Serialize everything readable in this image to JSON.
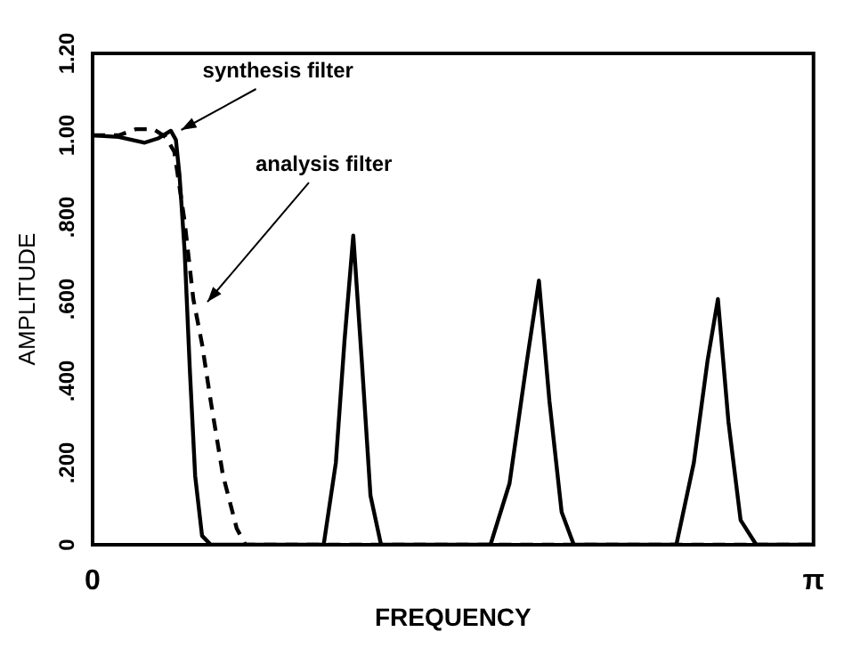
{
  "chart_data": {
    "type": "line",
    "xlabel": "FREQUENCY",
    "ylabel": "AMPLITUDE",
    "xlim": [
      0,
      3.1416
    ],
    "xticks": [
      {
        "value": 0,
        "label": "0"
      },
      {
        "value": 3.1416,
        "label": "π"
      }
    ],
    "ylim": [
      0,
      1.2
    ],
    "yticks": [
      {
        "value": 0,
        "label": "0"
      },
      {
        "value": 0.2,
        "label": ".200"
      },
      {
        "value": 0.4,
        "label": ".400"
      },
      {
        "value": 0.6,
        "label": ".600"
      },
      {
        "value": 0.8,
        "label": ".800"
      },
      {
        "value": 1.0,
        "label": "1.00"
      },
      {
        "value": 1.2,
        "label": "1.20"
      }
    ],
    "grid": false,
    "legend": false,
    "marker": "none",
    "series": [
      {
        "color": "#000000",
        "line_style": "solid",
        "x": [
          0,
          0.114,
          0.227,
          0.288,
          0.341,
          0.363,
          0.379,
          0.401,
          0.424,
          0.447,
          0.477,
          0.515,
          0.757,
          1.007,
          1.06,
          1.098,
          1.136,
          1.173,
          1.211,
          1.257,
          1.734,
          1.817,
          1.893,
          1.945,
          1.991,
          2.044,
          2.097,
          2.544,
          2.62,
          2.68,
          2.725,
          2.771,
          2.824,
          2.892,
          3.1416
        ],
        "values": [
          1.0,
          0.996,
          0.982,
          0.993,
          1.011,
          0.989,
          0.901,
          0.718,
          0.425,
          0.168,
          0.022,
          0,
          0,
          0,
          0.2,
          0.5,
          0.755,
          0.45,
          0.12,
          0,
          0,
          0.15,
          0.45,
          0.645,
          0.35,
          0.08,
          0,
          0,
          0.2,
          0.45,
          0.6,
          0.3,
          0.06,
          0,
          0
        ]
      },
      {
        "color": "#000000",
        "line_style": "dashed",
        "x": [
          0,
          0.114,
          0.189,
          0.265,
          0.318,
          0.356,
          0.401,
          0.439,
          0.477,
          0.515,
          0.568,
          0.628,
          0.666,
          1.136,
          3.1416
        ],
        "values": [
          1.0,
          1.0,
          1.015,
          1.015,
          0.996,
          0.96,
          0.79,
          0.6,
          0.49,
          0.35,
          0.17,
          0.04,
          0,
          0,
          0
        ]
      }
    ],
    "annotations": [
      {
        "text": "synthesis filter",
        "x": 0.363,
        "y": 1.0
      },
      {
        "text": "analysis filter",
        "x": 0.477,
        "y": 0.58
      }
    ]
  }
}
